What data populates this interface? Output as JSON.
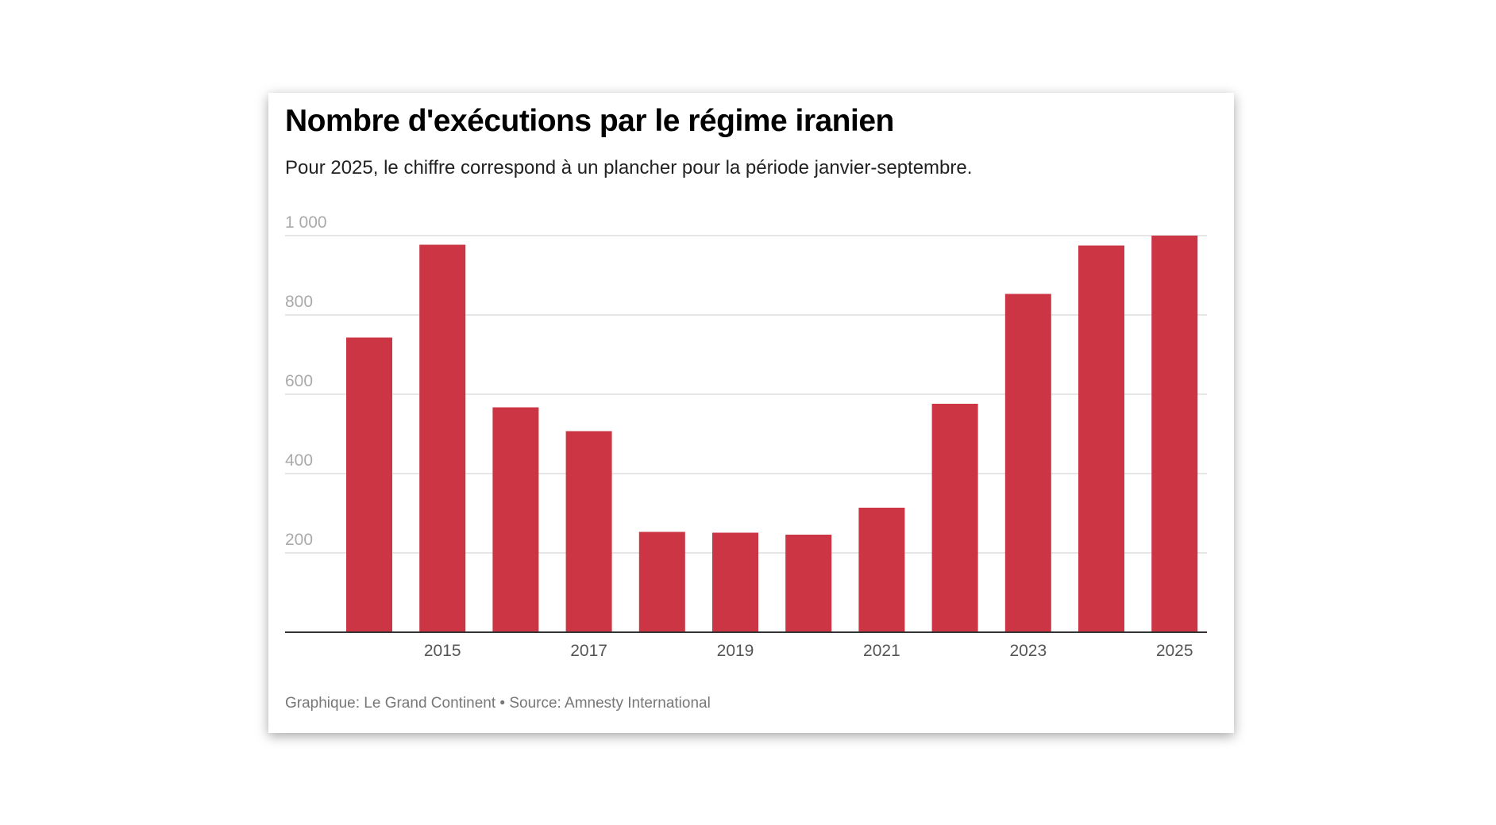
{
  "chart_data": {
    "type": "bar",
    "title": "Nombre d'exécutions par le régime iranien",
    "subtitle": "Pour 2025, le chiffre correspond à un plancher pour la période janvier-septembre.",
    "footer": "Graphique: Le Grand Continent • Source: Amnesty International",
    "categories": [
      "2014",
      "2015",
      "2016",
      "2017",
      "2018",
      "2019",
      "2020",
      "2021",
      "2022",
      "2023",
      "2024",
      "2025"
    ],
    "x_tick_labels": [
      "2015",
      "2017",
      "2019",
      "2021",
      "2023",
      "2025"
    ],
    "values": [
      743,
      977,
      567,
      507,
      253,
      251,
      246,
      314,
      576,
      853,
      975,
      1000
    ],
    "y_ticks": [
      200,
      400,
      600,
      800,
      1000
    ],
    "y_tick_labels": [
      "200",
      "400",
      "600",
      "800",
      "1 000"
    ],
    "ylim": [
      0,
      1000
    ],
    "xlabel": "",
    "ylabel": "",
    "grid": true,
    "bar_color": "#cb3544"
  }
}
